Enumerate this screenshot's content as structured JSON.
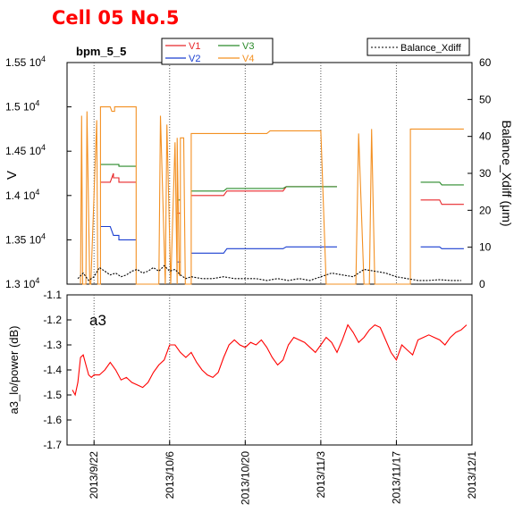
{
  "page_title": "Cell 05 No.5",
  "title_color": "#ff0000",
  "chart_data": [
    {
      "type": "line",
      "title": "bpm_5_5",
      "xlabel": "",
      "ylabel": "V",
      "y2label": "Balance_Xdiff (μm)",
      "ylim": [
        13000,
        15500
      ],
      "y2lim": [
        0,
        60
      ],
      "yticks": [
        {
          "value": 13000,
          "mant": "1.3",
          "exp": "4"
        },
        {
          "value": 13500,
          "mant": "1.35",
          "exp": "4"
        },
        {
          "value": 14000,
          "mant": "1.4",
          "exp": "4"
        },
        {
          "value": 14500,
          "mant": "1.45",
          "exp": "4"
        },
        {
          "value": 15000,
          "mant": "1.5",
          "exp": "4"
        },
        {
          "value": 15500,
          "mant": "1.55",
          "exp": "4"
        }
      ],
      "tick_base": "10",
      "y2ticks": [
        "0",
        "10",
        "20",
        "30",
        "40",
        "50",
        "60"
      ],
      "grid": "dotted vertical lines at each date tick",
      "legend_position": "top-center",
      "legend2_position": "top-right",
      "series": [
        {
          "name": "V1",
          "axis": "left",
          "color": "#e8272a",
          "segments": [
            {
              "x": [
                1.2,
                3.0,
                3.6,
                3.6,
                4.6,
                4.6,
                7.8
              ],
              "y": [
                14150,
                14150,
                14250,
                14200,
                14200,
                14150,
                14150
              ]
            },
            {
              "x": [
                15.4,
                16.0
              ],
              "y": [
                13800,
                13800
              ]
            },
            {
              "x": [
                18.0,
                24.0,
                24.6,
                35.0,
                35.6,
                42.0,
                45.0
              ],
              "y": [
                14000,
                14000,
                14050,
                14050,
                14100,
                14100,
                14100
              ]
            },
            {
              "x": [
                60.5,
                64.0,
                64.4,
                68.5
              ],
              "y": [
                13950,
                13950,
                13900,
                13900
              ]
            }
          ]
        },
        {
          "name": "V2",
          "axis": "left",
          "color": "#1a3fd1",
          "segments": [
            {
              "x": [
                1.2,
                3.0,
                3.6,
                4.6,
                4.6,
                7.8
              ],
              "y": [
                13650,
                13650,
                13550,
                13550,
                13500,
                13500
              ]
            },
            {
              "x": [
                15.4,
                16.0
              ],
              "y": [
                13250,
                13250
              ]
            },
            {
              "x": [
                18.0,
                24.0,
                24.6,
                35.0,
                35.6,
                42.0,
                45.0
              ],
              "y": [
                13350,
                13350,
                13400,
                13400,
                13420,
                13420,
                13420
              ]
            },
            {
              "x": [
                60.5,
                64.0,
                64.4,
                68.5
              ],
              "y": [
                13420,
                13420,
                13400,
                13400
              ]
            }
          ]
        },
        {
          "name": "V3",
          "axis": "left",
          "color": "#2a8a2a",
          "segments": [
            {
              "x": [
                1.2,
                3.0,
                3.6,
                4.6,
                4.6,
                7.8
              ],
              "y": [
                14350,
                14350,
                14350,
                14350,
                14330,
                14330
              ]
            },
            {
              "x": [
                15.4,
                16.0
              ],
              "y": [
                13950,
                13950
              ]
            },
            {
              "x": [
                18.0,
                24.0,
                24.6,
                35.0,
                35.6,
                42.0,
                45.0
              ],
              "y": [
                14050,
                14050,
                14080,
                14080,
                14100,
                14100,
                14100
              ]
            },
            {
              "x": [
                60.5,
                64.0,
                64.4,
                68.5
              ],
              "y": [
                14150,
                14150,
                14120,
                14120
              ]
            }
          ]
        },
        {
          "name": "V4",
          "axis": "left",
          "color": "#f39022",
          "segments": [
            {
              "x": [
                -2.5,
                -2.3,
                -2.1,
                -1.5,
                -1.3,
                -0.8,
                -0.6,
                0.5,
                0.7,
                1.2,
                1.2,
                3.0,
                3.3,
                3.8,
                3.8,
                7.8,
                7.8,
                11.0,
                12.0,
                12.3,
                13.2,
                13.5,
                14.2,
                15.0,
                15.4,
                15.4,
                15.8,
                16.0,
                16.0,
                16.6,
                16.9,
                18.0,
                18.0,
                32.0,
                32.6,
                42.0,
                43.0,
                45.0,
                48.0,
                48.5,
                49.0,
                50.0,
                50.5,
                51.0,
                51.4,
                52.0,
                55.0,
                58.6,
                58.6,
                60.3,
                60.6,
                60.6,
                68.5
              ],
              "y": [
                13000,
                14900,
                13000,
                13000,
                14950,
                13000,
                13000,
                14850,
                13000,
                13000,
                15000,
                15000,
                14950,
                14950,
                15000,
                15000,
                13000,
                13000,
                13000,
                14900,
                13000,
                14800,
                13000,
                14600,
                13000,
                14650,
                13100,
                13100,
                14650,
                14650,
                13000,
                13000,
                14700,
                14700,
                14730,
                14730,
                13000,
                13000,
                13000,
                13000,
                14700,
                13000,
                13000,
                13000,
                14750,
                13000,
                13000,
                13000,
                14750,
                14750,
                14750,
                14750,
                14750
              ]
            }
          ]
        },
        {
          "name": "Balance_Xdiff",
          "axis": "right",
          "color": "#000000",
          "segments": [
            {
              "x": [
                -3,
                -2,
                -1,
                0,
                1,
                2,
                3,
                4,
                5,
                6,
                7,
                8,
                9,
                10,
                11,
                12,
                13,
                14,
                15,
                16,
                17,
                18,
                20,
                22,
                24,
                26,
                28,
                30,
                32,
                34,
                36,
                38,
                40,
                42,
                44,
                46,
                48,
                50,
                52,
                54,
                56,
                58,
                60,
                62,
                64,
                66,
                68
              ],
              "y": [
                1.5,
                3,
                1,
                2,
                4.5,
                3.5,
                2.5,
                3,
                2,
                2.5,
                3.5,
                4,
                3,
                3.5,
                4.5,
                3.5,
                5,
                3.5,
                4,
                2.5,
                1.5,
                2,
                1.5,
                1.5,
                2,
                1.5,
                1.5,
                1.5,
                1,
                1.5,
                1,
                1.5,
                1,
                2,
                3,
                2.5,
                2,
                4,
                3.5,
                3,
                2,
                1.5,
                1,
                1,
                1.2,
                1,
                1
              ]
            }
          ]
        }
      ]
    },
    {
      "type": "line",
      "title": "a3",
      "xlabel": "",
      "ylabel": "a3_lo/power (dB)",
      "ylim": [
        -1.7,
        -1.1
      ],
      "yticks": [
        "-1.7",
        "-1.6",
        "-1.5",
        "-1.4",
        "-1.3",
        "-1.2",
        "-1.1"
      ],
      "grid": "dotted vertical lines at each date tick",
      "series": [
        {
          "name": "",
          "color": "#ff0000",
          "x": [
            -4,
            -3.5,
            -3,
            -2.5,
            -2,
            -1.5,
            -1,
            -0.5,
            0,
            1,
            2,
            3,
            4,
            5,
            6,
            7,
            8,
            9,
            10,
            11,
            12,
            13,
            14,
            15,
            16,
            17,
            18,
            19,
            20,
            21,
            22,
            23,
            24,
            25,
            26,
            27,
            28,
            29,
            30,
            31,
            32,
            33,
            34,
            35,
            36,
            37,
            38,
            39,
            40,
            41,
            42,
            43,
            44,
            45,
            46,
            47,
            48,
            49,
            50,
            51,
            52,
            53,
            54,
            55,
            56,
            57,
            58,
            59,
            60,
            61,
            62,
            63,
            64,
            65,
            66,
            67,
            68,
            69
          ],
          "y": [
            -1.48,
            -1.5,
            -1.45,
            -1.35,
            -1.34,
            -1.38,
            -1.42,
            -1.43,
            -1.42,
            -1.42,
            -1.4,
            -1.37,
            -1.4,
            -1.44,
            -1.43,
            -1.45,
            -1.46,
            -1.47,
            -1.45,
            -1.41,
            -1.38,
            -1.36,
            -1.3,
            -1.3,
            -1.33,
            -1.35,
            -1.33,
            -1.37,
            -1.4,
            -1.42,
            -1.43,
            -1.41,
            -1.35,
            -1.3,
            -1.28,
            -1.3,
            -1.31,
            -1.29,
            -1.3,
            -1.28,
            -1.31,
            -1.35,
            -1.38,
            -1.36,
            -1.3,
            -1.27,
            -1.28,
            -1.29,
            -1.31,
            -1.33,
            -1.3,
            -1.27,
            -1.29,
            -1.33,
            -1.28,
            -1.22,
            -1.25,
            -1.29,
            -1.27,
            -1.24,
            -1.22,
            -1.23,
            -1.28,
            -1.33,
            -1.36,
            -1.3,
            -1.32,
            -1.34,
            -1.28,
            -1.27,
            -1.26,
            -1.27,
            -1.28,
            -1.3,
            -1.27,
            -1.25,
            -1.24,
            -1.22
          ]
        }
      ]
    }
  ],
  "x_axis": {
    "ticks": [
      {
        "x": 0,
        "label": "2013/9/22"
      },
      {
        "x": 14,
        "label": "2013/10/6"
      },
      {
        "x": 28,
        "label": "2013/10/20"
      },
      {
        "x": 42,
        "label": "2013/11/3"
      },
      {
        "x": 56,
        "label": "2013/11/17"
      },
      {
        "x": 70,
        "label": "2013/12/1"
      }
    ]
  }
}
